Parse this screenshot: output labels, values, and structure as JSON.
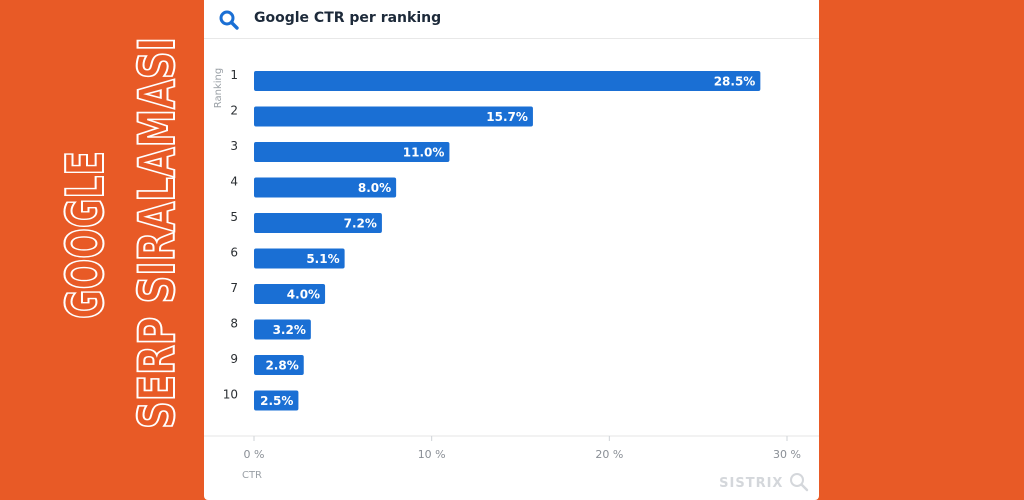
{
  "side_title": {
    "line1": "GOOGLE",
    "line2": "SERP SIRALAMASI"
  },
  "header": {
    "title": "Google CTR per ranking",
    "icon": "search-icon"
  },
  "brand": {
    "name": "SISTRIX"
  },
  "colors": {
    "background": "#e85a26",
    "bar": "#1a6fd4",
    "card": "#ffffff"
  },
  "chart_data": {
    "type": "bar",
    "orientation": "horizontal",
    "title": "Google CTR per ranking",
    "xlabel": "CTR",
    "ylabel": "Ranking",
    "categories": [
      "1",
      "2",
      "3",
      "4",
      "5",
      "6",
      "7",
      "8",
      "9",
      "10"
    ],
    "values": [
      28.5,
      15.7,
      11.0,
      8.0,
      7.2,
      5.1,
      4.0,
      3.2,
      2.8,
      2.5
    ],
    "value_labels": [
      "28.5%",
      "15.7%",
      "11.0%",
      "8.0%",
      "7.2%",
      "5.1%",
      "4.0%",
      "3.2%",
      "2.8%",
      "2.5%"
    ],
    "xlim": [
      0,
      30
    ],
    "xticks": [
      0,
      10,
      20,
      30
    ],
    "xtick_labels": [
      "0 %",
      "10 %",
      "20 %",
      "30 %"
    ],
    "grid": "vertical"
  }
}
